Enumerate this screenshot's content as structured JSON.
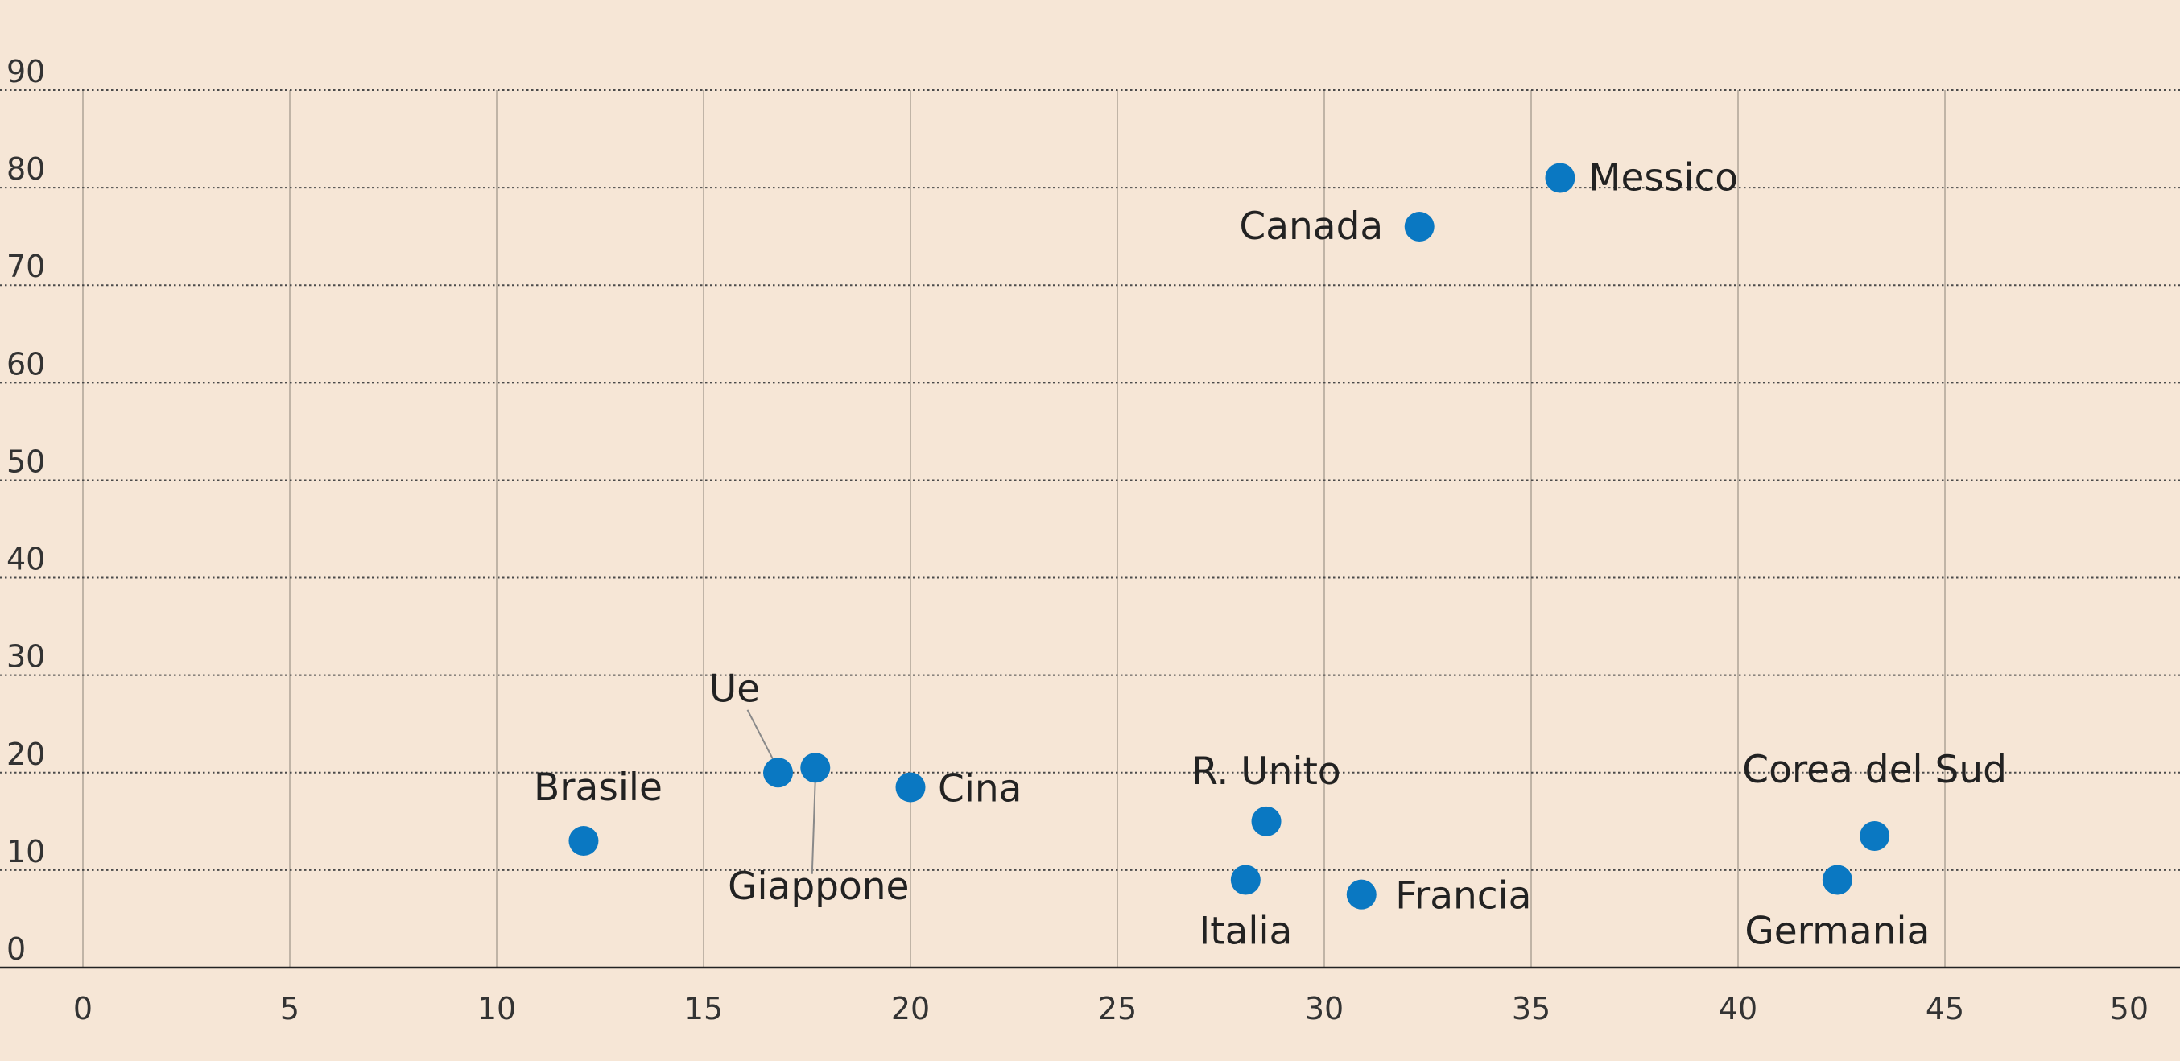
{
  "chart_data": {
    "type": "scatter",
    "title": "",
    "xlabel": "",
    "ylabel": "",
    "xlim": [
      0,
      50
    ],
    "ylim": [
      0,
      90
    ],
    "x_ticks": [
      0,
      5,
      10,
      15,
      20,
      25,
      30,
      35,
      40,
      45,
      50
    ],
    "y_ticks": [
      0,
      10,
      20,
      30,
      40,
      50,
      60,
      70,
      80,
      90
    ],
    "grid": true,
    "legend": "none",
    "point_color": "#0a78c2",
    "points": [
      {
        "label": "Messico",
        "x": 35.7,
        "y": 81.0
      },
      {
        "label": "Canada",
        "x": 32.3,
        "y": 76.0
      },
      {
        "label": "Brasile",
        "x": 12.1,
        "y": 13.0
      },
      {
        "label": "Ue",
        "x": 16.8,
        "y": 20.0
      },
      {
        "label": "Giappone",
        "x": 17.7,
        "y": 20.5
      },
      {
        "label": "Cina",
        "x": 20.0,
        "y": 18.5
      },
      {
        "label": "R. Unito",
        "x": 28.6,
        "y": 15.0
      },
      {
        "label": "Italia",
        "x": 28.1,
        "y": 9.0
      },
      {
        "label": "Francia",
        "x": 30.9,
        "y": 7.5
      },
      {
        "label": "Corea del Sud",
        "x": 43.3,
        "y": 13.5
      },
      {
        "label": "Germania",
        "x": 42.4,
        "y": 9.0
      }
    ]
  }
}
